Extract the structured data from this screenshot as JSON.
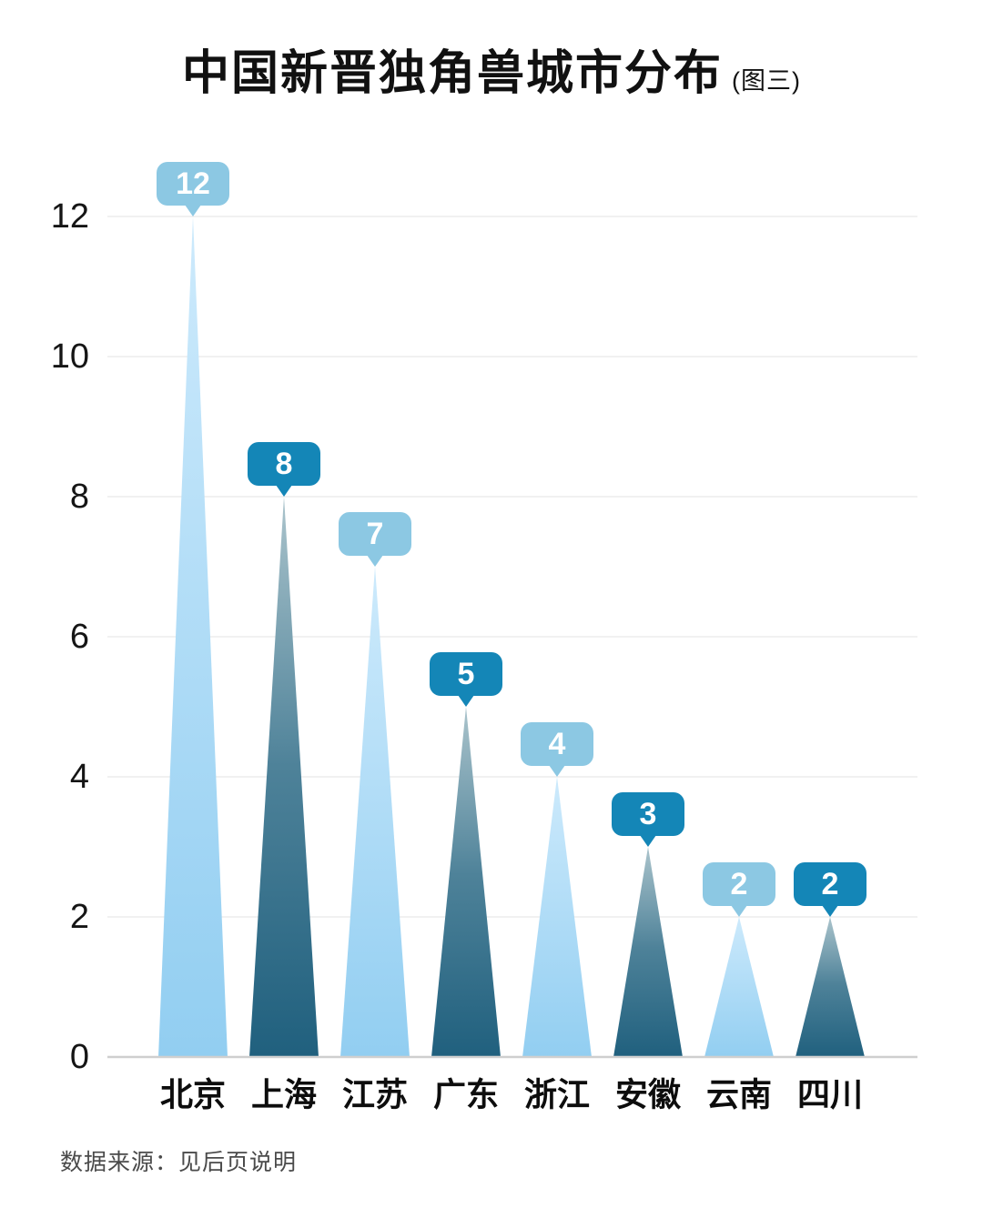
{
  "title": {
    "text": "中国新晋独角兽城市分布",
    "figure_tag": "(图三)"
  },
  "source_note": "数据来源：见后页说明",
  "chart_data": {
    "type": "bar",
    "style": "triangle-spike-bars",
    "title": "中国新晋独角兽城市分布 (图三)",
    "categories": [
      "北京",
      "上海",
      "江苏",
      "广东",
      "浙江",
      "安徽",
      "云南",
      "四川"
    ],
    "values": [
      12,
      8,
      7,
      5,
      4,
      3,
      2,
      2
    ],
    "bar_palette": [
      "light",
      "dark",
      "light",
      "dark",
      "light",
      "dark",
      "light",
      "dark"
    ],
    "value_labels": [
      "12",
      "8",
      "7",
      "5",
      "4",
      "3",
      "2",
      "2"
    ],
    "y_ticks": [
      0,
      2,
      4,
      6,
      8,
      10,
      12
    ],
    "ylim": [
      0,
      12
    ],
    "grid": true,
    "legend": false,
    "xlabel": "",
    "ylabel": "",
    "colors": {
      "light_bar_top": "#cdeafc",
      "light_bar_bottom": "#92cef1",
      "dark_bar_top": "#abc4cc",
      "dark_bar_mid": "#4e8299",
      "dark_bar_bottom": "#20607e",
      "light_label_bg": "#8cc8e3",
      "dark_label_bg": "#1486b7",
      "label_text": "#ffffff",
      "gridline": "#f1f1f1",
      "baseline": "#cfcfcf",
      "axis_text": "#151515"
    }
  }
}
